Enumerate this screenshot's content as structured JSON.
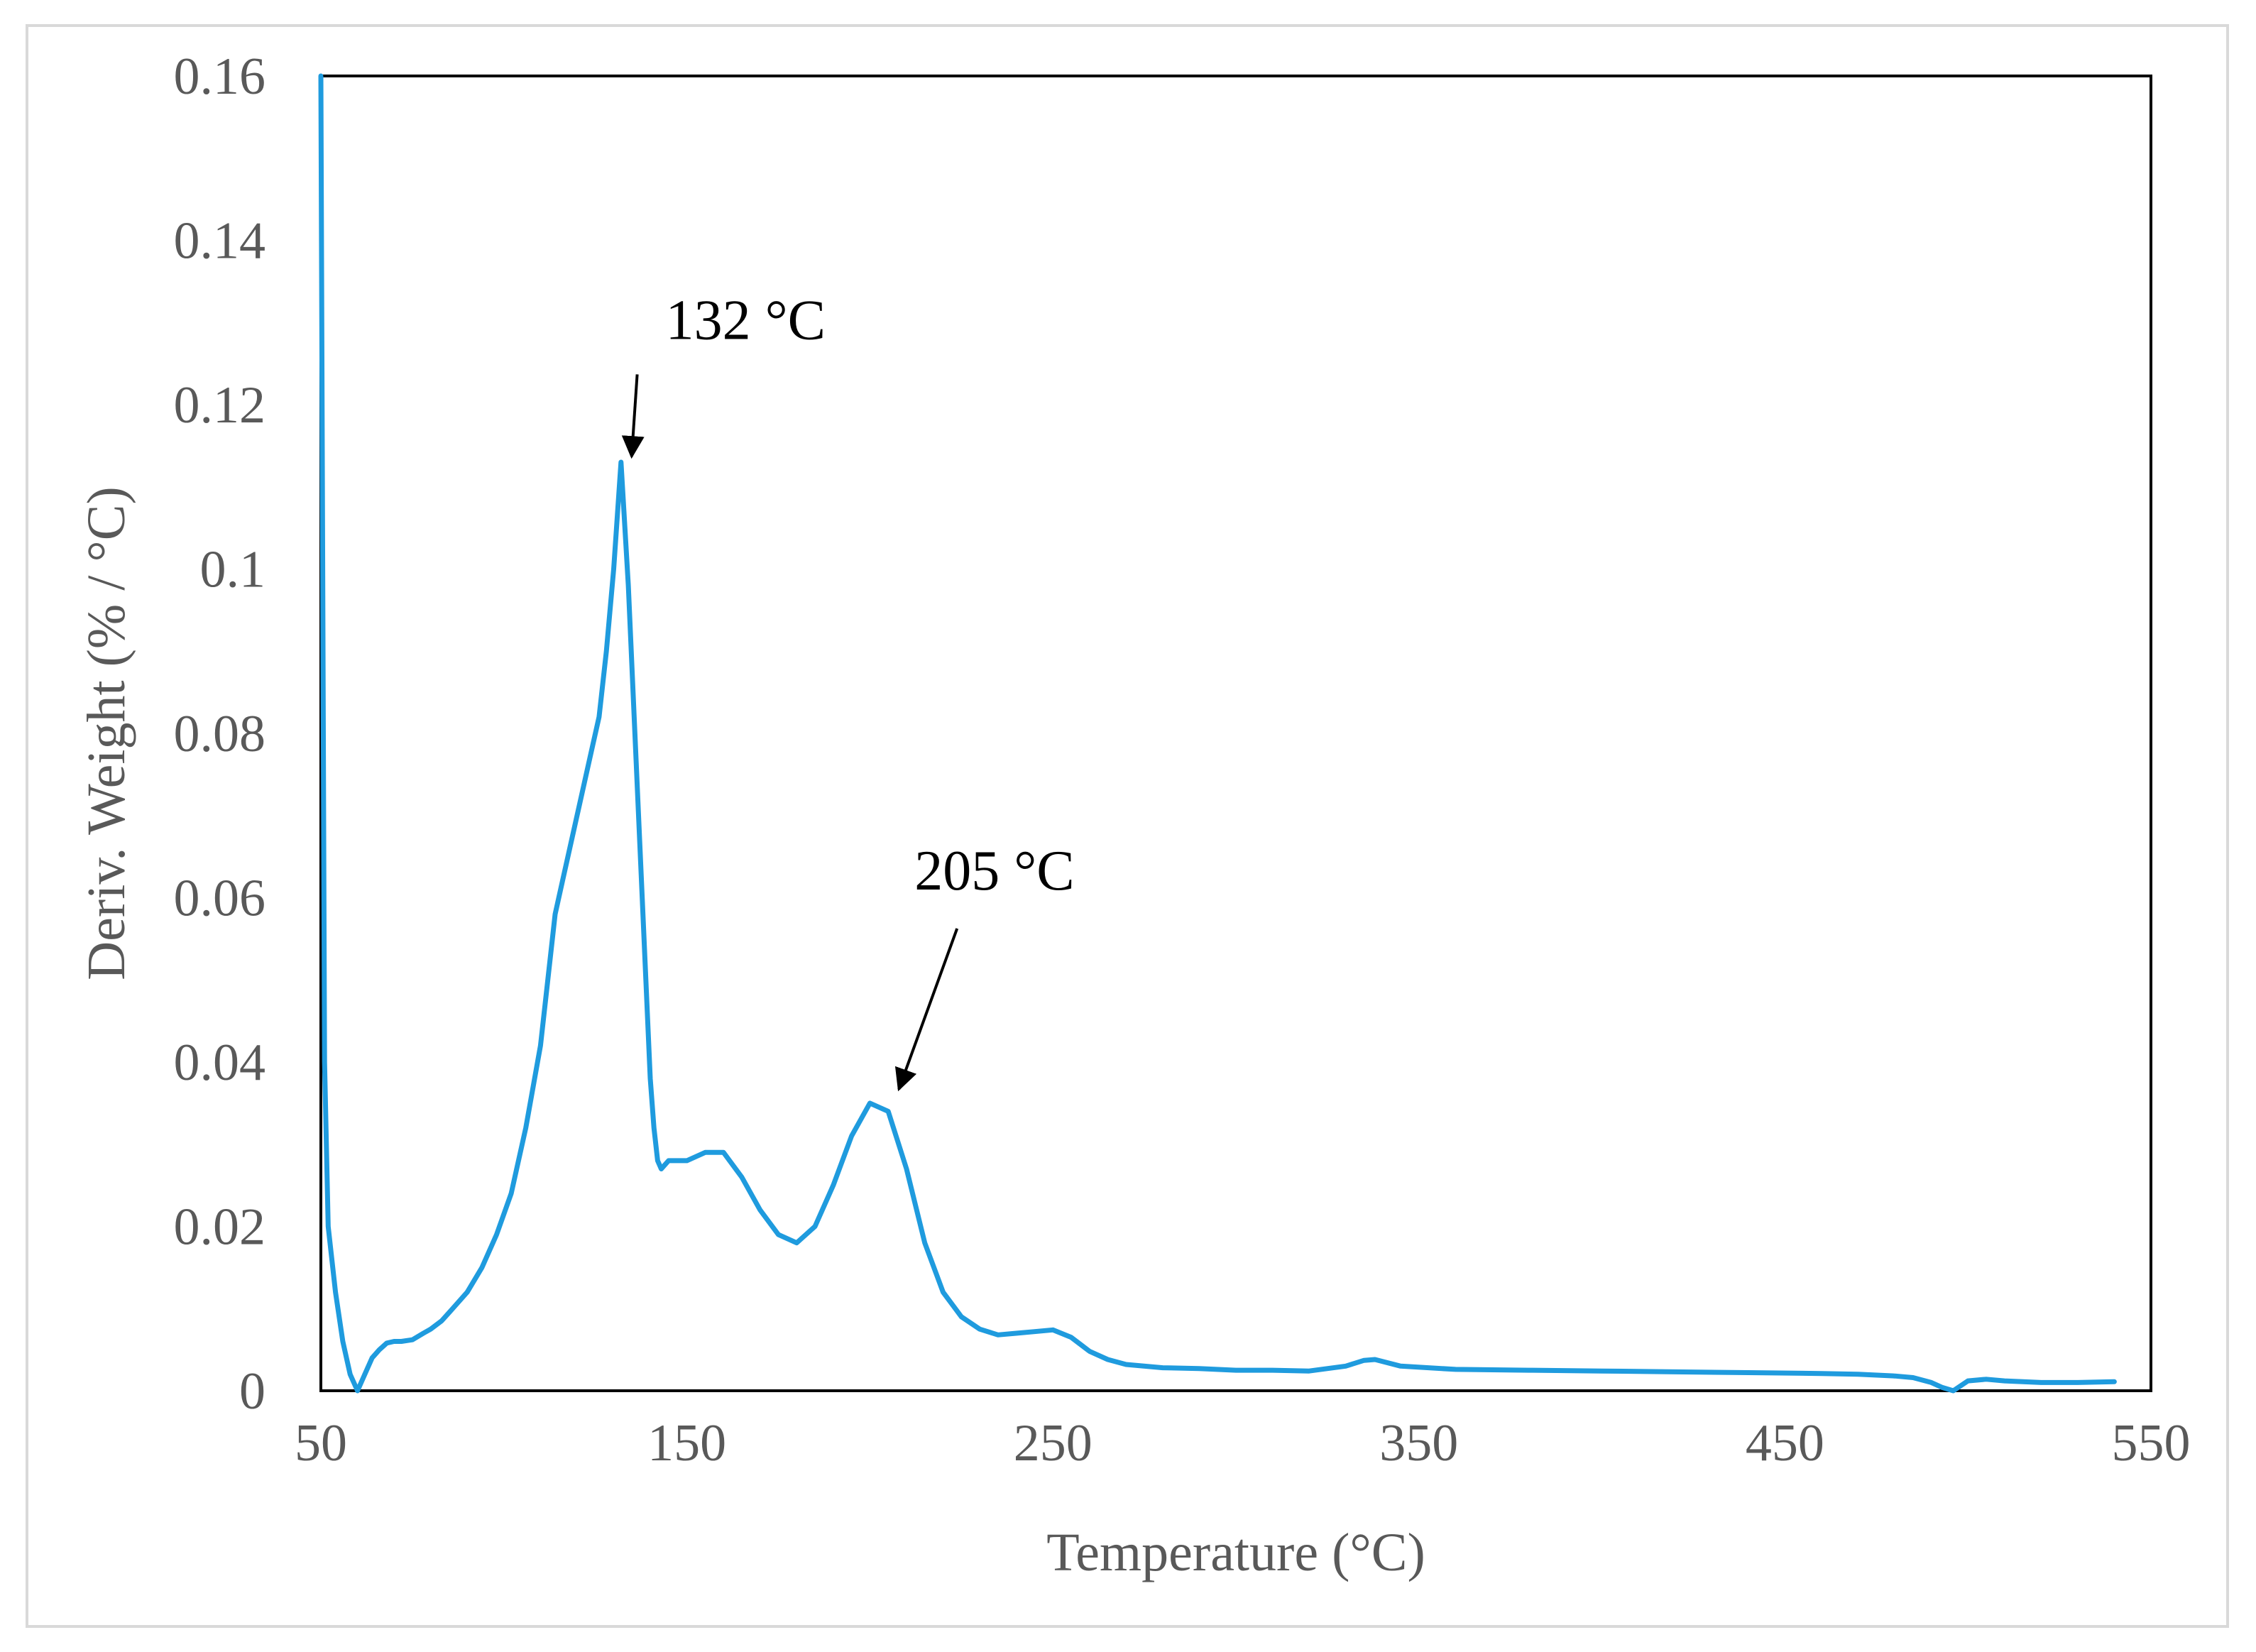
{
  "chart_data": {
    "type": "line",
    "title": "",
    "xlabel": "Temperature (°C)",
    "ylabel": "Deriv. Weight (% / °C)",
    "xlim": [
      50,
      550
    ],
    "ylim": [
      0,
      0.16
    ],
    "x_ticks": [
      50,
      150,
      250,
      350,
      450,
      550
    ],
    "x_tick_labels": [
      "50",
      "150",
      "250",
      "350",
      "450",
      "550"
    ],
    "y_ticks": [
      0,
      0.02,
      0.04,
      0.06,
      0.08,
      0.1,
      0.12,
      0.14,
      0.16
    ],
    "y_tick_labels": [
      "0",
      "0.02",
      "0.04",
      "0.06",
      "0.08",
      "0.1",
      "0.12",
      "0.14",
      "0.16"
    ],
    "grid": false,
    "legend": "none",
    "series": [
      {
        "name": "Deriv. Weight",
        "color": "#1f9bde",
        "x": [
          50,
          51,
          52,
          54,
          56,
          58,
          60,
          62,
          64,
          66,
          68,
          70,
          72,
          75,
          78,
          80,
          83,
          86,
          90,
          94,
          98,
          102,
          106,
          110,
          112,
          114,
          116,
          118,
          120,
          122,
          124,
          126,
          128,
          130,
          132,
          134,
          136,
          138,
          140,
          141,
          142,
          143,
          145,
          150,
          155,
          160,
          165,
          170,
          175,
          180,
          185,
          190,
          195,
          200,
          205,
          210,
          215,
          220,
          225,
          230,
          235,
          240,
          245,
          250,
          255,
          260,
          265,
          270,
          280,
          290,
          300,
          310,
          320,
          330,
          335,
          338,
          345,
          360,
          380,
          400,
          420,
          440,
          460,
          470,
          480,
          485,
          490,
          493,
          496,
          500,
          505,
          510,
          520,
          530,
          540
        ],
        "y": [
          0.16,
          0.04,
          0.02,
          0.012,
          0.006,
          0.002,
          0.0,
          0.002,
          0.004,
          0.005,
          0.0058,
          0.006,
          0.006,
          0.0062,
          0.007,
          0.0075,
          0.0085,
          0.01,
          0.012,
          0.015,
          0.019,
          0.024,
          0.032,
          0.042,
          0.05,
          0.058,
          0.062,
          0.066,
          0.07,
          0.074,
          0.078,
          0.082,
          0.09,
          0.1,
          0.113,
          0.098,
          0.078,
          0.058,
          0.038,
          0.032,
          0.028,
          0.027,
          0.028,
          0.028,
          0.029,
          0.029,
          0.026,
          0.022,
          0.019,
          0.018,
          0.02,
          0.025,
          0.031,
          0.035,
          0.034,
          0.027,
          0.018,
          0.012,
          0.009,
          0.0075,
          0.0068,
          0.007,
          0.0072,
          0.0074,
          0.0065,
          0.0048,
          0.0038,
          0.0032,
          0.0028,
          0.0027,
          0.0025,
          0.0025,
          0.0024,
          0.003,
          0.0037,
          0.0038,
          0.003,
          0.0026,
          0.0025,
          0.0024,
          0.0023,
          0.0022,
          0.0021,
          0.002,
          0.0018,
          0.0016,
          0.001,
          0.0004,
          0.0,
          0.0012,
          0.0014,
          0.0012,
          0.001,
          0.001,
          0.0011
        ]
      }
    ],
    "annotations": [
      {
        "text": "132 °C",
        "x": 132,
        "y": 0.113,
        "text_x": 150,
        "text_y": 0.128
      },
      {
        "text": "205 °C",
        "x": 205,
        "y": 0.036,
        "text_x": 218,
        "text_y": 0.061
      }
    ]
  }
}
